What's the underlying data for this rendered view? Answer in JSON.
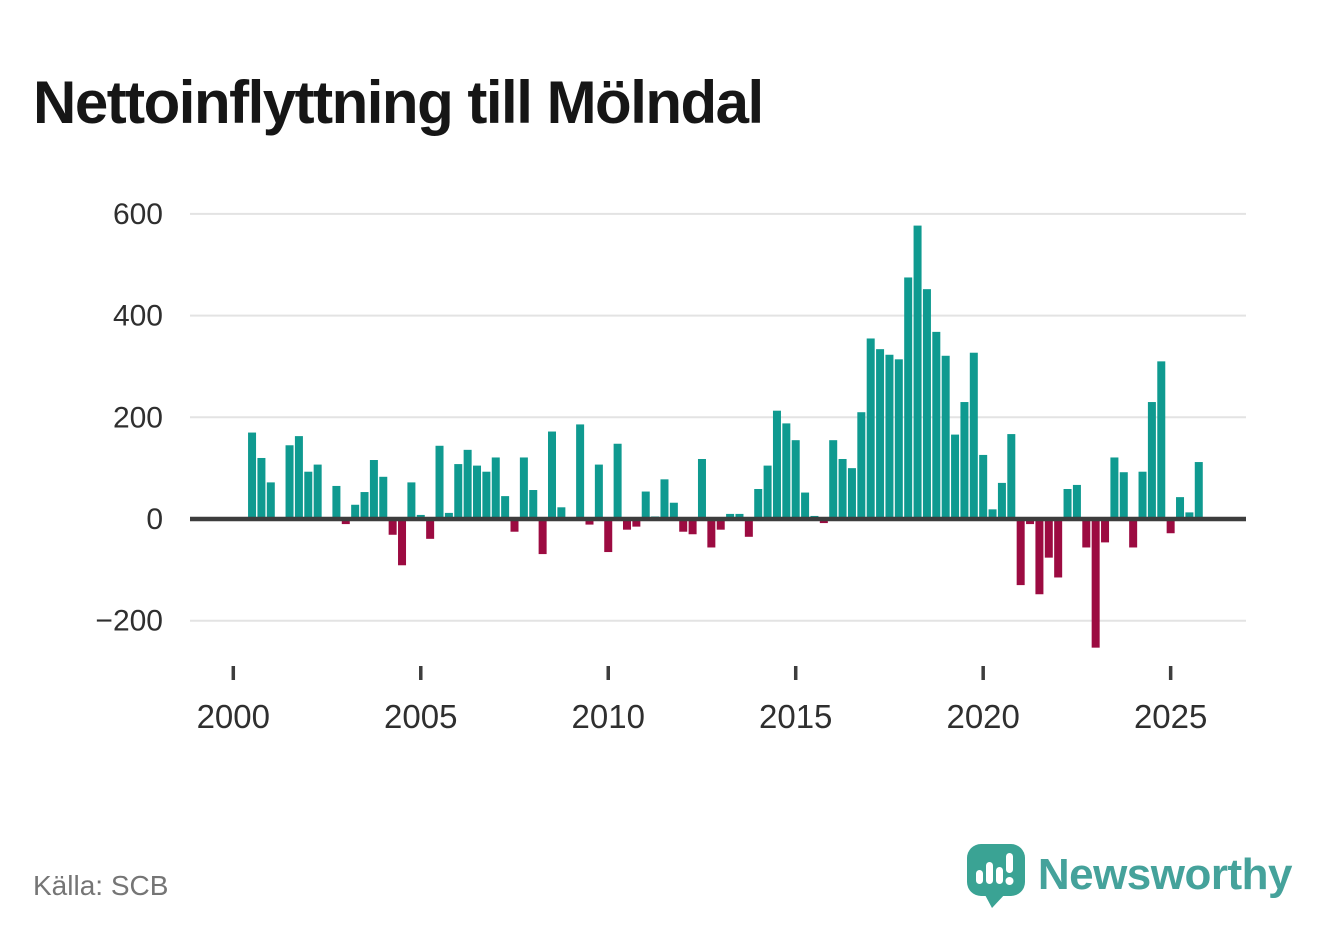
{
  "header": {
    "title": "Nettoinflyttning till Mölndal"
  },
  "footer": {
    "source": "Källa: SCB",
    "brand": "Newsworthy",
    "logo_icon": "speech-bubble-bar-chart-icon"
  },
  "chart_data": {
    "type": "bar",
    "title": "Nettoinflyttning till Mölndal",
    "source": "Källa: SCB",
    "grid": true,
    "legend_position": "none",
    "ylim": [
      -260,
      620
    ],
    "y_ticks": [
      {
        "value": 600,
        "label": "600"
      },
      {
        "value": 400,
        "label": "400"
      },
      {
        "value": 200,
        "label": "200"
      },
      {
        "value": 0,
        "label": "0"
      },
      {
        "value": -200,
        "label": "−200"
      }
    ],
    "x_ticks": [
      {
        "year": 2000,
        "label": "2000"
      },
      {
        "year": 2005,
        "label": "2005"
      },
      {
        "year": 2010,
        "label": "2010"
      },
      {
        "year": 2015,
        "label": "2015"
      },
      {
        "year": 2020,
        "label": "2020"
      },
      {
        "year": 2025,
        "label": "2025"
      }
    ],
    "colors": {
      "positive": "#0f9a90",
      "negative": "#9c0b41",
      "axis": "#3d3d3d",
      "gridline": "#e3e3e3",
      "tick_text": "#2f2f2f"
    },
    "quarters": [
      {
        "t": "2000-Q3",
        "v": 170
      },
      {
        "t": "2000-Q4",
        "v": 120
      },
      {
        "t": "2001-Q1",
        "v": 72
      },
      {
        "t": "2001-Q2",
        "v": 0
      },
      {
        "t": "2001-Q3",
        "v": 145
      },
      {
        "t": "2001-Q4",
        "v": 163
      },
      {
        "t": "2002-Q1",
        "v": 93
      },
      {
        "t": "2002-Q2",
        "v": 107
      },
      {
        "t": "2002-Q3",
        "v": 0
      },
      {
        "t": "2002-Q4",
        "v": 65
      },
      {
        "t": "2003-Q1",
        "v": -10
      },
      {
        "t": "2003-Q2",
        "v": 28
      },
      {
        "t": "2003-Q3",
        "v": 53
      },
      {
        "t": "2003-Q4",
        "v": 116
      },
      {
        "t": "2004-Q1",
        "v": 83
      },
      {
        "t": "2004-Q2",
        "v": -31
      },
      {
        "t": "2004-Q3",
        "v": -91
      },
      {
        "t": "2004-Q4",
        "v": 72
      },
      {
        "t": "2005-Q1",
        "v": 8
      },
      {
        "t": "2005-Q2",
        "v": -39
      },
      {
        "t": "2005-Q3",
        "v": 144
      },
      {
        "t": "2005-Q4",
        "v": 12
      },
      {
        "t": "2006-Q1",
        "v": 108
      },
      {
        "t": "2006-Q2",
        "v": 136
      },
      {
        "t": "2006-Q3",
        "v": 105
      },
      {
        "t": "2006-Q4",
        "v": 93
      },
      {
        "t": "2007-Q1",
        "v": 121
      },
      {
        "t": "2007-Q2",
        "v": 45
      },
      {
        "t": "2007-Q3",
        "v": -25
      },
      {
        "t": "2007-Q4",
        "v": 121
      },
      {
        "t": "2008-Q1",
        "v": 57
      },
      {
        "t": "2008-Q2",
        "v": -69
      },
      {
        "t": "2008-Q3",
        "v": 172
      },
      {
        "t": "2008-Q4",
        "v": 23
      },
      {
        "t": "2009-Q1",
        "v": 0
      },
      {
        "t": "2009-Q2",
        "v": 186
      },
      {
        "t": "2009-Q3",
        "v": -11
      },
      {
        "t": "2009-Q4",
        "v": 107
      },
      {
        "t": "2010-Q1",
        "v": -65
      },
      {
        "t": "2010-Q2",
        "v": 148
      },
      {
        "t": "2010-Q3",
        "v": -21
      },
      {
        "t": "2010-Q4",
        "v": -15
      },
      {
        "t": "2011-Q1",
        "v": 54
      },
      {
        "t": "2011-Q2",
        "v": 5
      },
      {
        "t": "2011-Q3",
        "v": 78
      },
      {
        "t": "2011-Q4",
        "v": 32
      },
      {
        "t": "2012-Q1",
        "v": -25
      },
      {
        "t": "2012-Q2",
        "v": -30
      },
      {
        "t": "2012-Q3",
        "v": 118
      },
      {
        "t": "2012-Q4",
        "v": -56
      },
      {
        "t": "2013-Q1",
        "v": -21
      },
      {
        "t": "2013-Q2",
        "v": 10
      },
      {
        "t": "2013-Q3",
        "v": 10
      },
      {
        "t": "2013-Q4",
        "v": -35
      },
      {
        "t": "2014-Q1",
        "v": 59
      },
      {
        "t": "2014-Q2",
        "v": 105
      },
      {
        "t": "2014-Q3",
        "v": 213
      },
      {
        "t": "2014-Q4",
        "v": 188
      },
      {
        "t": "2015-Q1",
        "v": 155
      },
      {
        "t": "2015-Q2",
        "v": 52
      },
      {
        "t": "2015-Q3",
        "v": 6
      },
      {
        "t": "2015-Q4",
        "v": -8
      },
      {
        "t": "2016-Q1",
        "v": 155
      },
      {
        "t": "2016-Q2",
        "v": 118
      },
      {
        "t": "2016-Q3",
        "v": 100
      },
      {
        "t": "2016-Q4",
        "v": 210
      },
      {
        "t": "2017-Q1",
        "v": 355
      },
      {
        "t": "2017-Q2",
        "v": 334
      },
      {
        "t": "2017-Q3",
        "v": 323
      },
      {
        "t": "2017-Q4",
        "v": 314
      },
      {
        "t": "2018-Q1",
        "v": 475
      },
      {
        "t": "2018-Q2",
        "v": 577
      },
      {
        "t": "2018-Q3",
        "v": 452
      },
      {
        "t": "2018-Q4",
        "v": 368
      },
      {
        "t": "2019-Q1",
        "v": 321
      },
      {
        "t": "2019-Q2",
        "v": 166
      },
      {
        "t": "2019-Q3",
        "v": 230
      },
      {
        "t": "2019-Q4",
        "v": 327
      },
      {
        "t": "2020-Q1",
        "v": 126
      },
      {
        "t": "2020-Q2",
        "v": 19
      },
      {
        "t": "2020-Q3",
        "v": 71
      },
      {
        "t": "2020-Q4",
        "v": 167
      },
      {
        "t": "2021-Q1",
        "v": -130
      },
      {
        "t": "2021-Q2",
        "v": -10
      },
      {
        "t": "2021-Q3",
        "v": -148
      },
      {
        "t": "2021-Q4",
        "v": -76
      },
      {
        "t": "2022-Q1",
        "v": -115
      },
      {
        "t": "2022-Q2",
        "v": 59
      },
      {
        "t": "2022-Q3",
        "v": 67
      },
      {
        "t": "2022-Q4",
        "v": -56
      },
      {
        "t": "2023-Q1",
        "v": -253
      },
      {
        "t": "2023-Q2",
        "v": -46
      },
      {
        "t": "2023-Q3",
        "v": 121
      },
      {
        "t": "2023-Q4",
        "v": 92
      },
      {
        "t": "2024-Q1",
        "v": -56
      },
      {
        "t": "2024-Q2",
        "v": 93
      },
      {
        "t": "2024-Q3",
        "v": 230
      },
      {
        "t": "2024-Q4",
        "v": 310
      },
      {
        "t": "2025-Q1",
        "v": -28
      },
      {
        "t": "2025-Q2",
        "v": 43
      },
      {
        "t": "2025-Q3",
        "v": 13
      },
      {
        "t": "2025-Q4",
        "v": 112
      }
    ]
  }
}
